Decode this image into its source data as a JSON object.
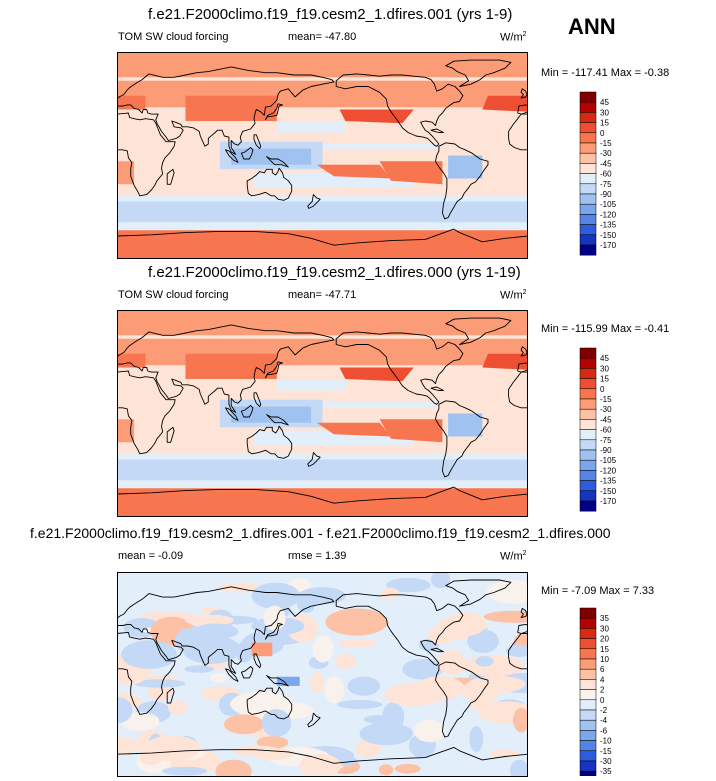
{
  "season_label": "ANN",
  "panels": [
    {
      "title": "f.e21.F2000climo.f19_f19.cesm2_1.dfires.001 (yrs 1-9)",
      "left_label": "TOM SW cloud forcing",
      "mean_text": "mean= -47.80",
      "units_main": "W/m",
      "units_exp": "2",
      "minmax": "Min = -117.41 Max =  -0.38",
      "colorbar_labels": [
        "45",
        "30",
        "15",
        "0",
        "-15",
        "-30",
        "-45",
        "-60",
        "-75",
        "-90",
        "-105",
        "-120",
        "-135",
        "-150",
        "-170"
      ],
      "palette": [
        "#800000",
        "#b40000",
        "#d72a10",
        "#ee4f32",
        "#f7754f",
        "#fb9c76",
        "#fdc2a6",
        "#fde4d6",
        "#e3eefb",
        "#c3d9f6",
        "#a0c2f1",
        "#7aa6ec",
        "#5485e6",
        "#2f5cde",
        "#1733c2",
        "#000080"
      ]
    },
    {
      "title": "f.e21.F2000climo.f19_f19.cesm2_1.dfires.000 (yrs 1-19)",
      "left_label": "TOM SW cloud forcing",
      "mean_text": "mean= -47.71",
      "units_main": "W/m",
      "units_exp": "2",
      "minmax": "Min = -115.99 Max =  -0.41",
      "colorbar_labels": [
        "45",
        "30",
        "15",
        "0",
        "-15",
        "-30",
        "-45",
        "-60",
        "-75",
        "-90",
        "-105",
        "-120",
        "-135",
        "-150",
        "-170"
      ],
      "palette": [
        "#800000",
        "#b40000",
        "#d72a10",
        "#ee4f32",
        "#f7754f",
        "#fb9c76",
        "#fdc2a6",
        "#fde4d6",
        "#e3eefb",
        "#c3d9f6",
        "#a0c2f1",
        "#7aa6ec",
        "#5485e6",
        "#2f5cde",
        "#1733c2",
        "#000080"
      ]
    },
    {
      "title": "f.e21.F2000climo.f19_f19.cesm2_1.dfires.001 - f.e21.F2000climo.f19_f19.cesm2_1.dfires.000",
      "left_label": "mean =  -0.09",
      "mean_text": "rmse =  1.39",
      "units_main": "W/m",
      "units_exp": "2",
      "minmax": "Min =  -7.09 Max =  7.33",
      "colorbar_labels": [
        "35",
        "30",
        "20",
        "15",
        "10",
        "6",
        "4",
        "2",
        "0",
        "-2",
        "-4",
        "-6",
        "-10",
        "-15",
        "-30",
        "-35"
      ],
      "palette": [
        "#800000",
        "#b40000",
        "#d72a10",
        "#ee4f32",
        "#f7754f",
        "#fb9c76",
        "#fdc2a6",
        "#fde4d6",
        "#f8f1ec",
        "#e3eefb",
        "#c3d9f6",
        "#a0c2f1",
        "#7aa6ec",
        "#5485e6",
        "#2f5cde",
        "#1733c2",
        "#000080"
      ]
    }
  ],
  "chart_data": {
    "type": "heatmap",
    "title": "ANN",
    "variable": "TOM SW cloud forcing",
    "units": "W/m2",
    "panels": [
      {
        "case": "f.e21.F2000climo.f19_f19.cesm2_1.dfires.001 (yrs 1-9)",
        "mean": -47.8,
        "min": -117.41,
        "max": -0.38
      },
      {
        "case": "f.e21.F2000climo.f19_f19.cesm2_1.dfires.000 (yrs 1-19)",
        "mean": -47.71,
        "min": -115.99,
        "max": -0.41
      },
      {
        "case": "difference 001 - 000",
        "mean": -0.09,
        "rmse": 1.39,
        "min": -7.09,
        "max": 7.33
      }
    ]
  }
}
